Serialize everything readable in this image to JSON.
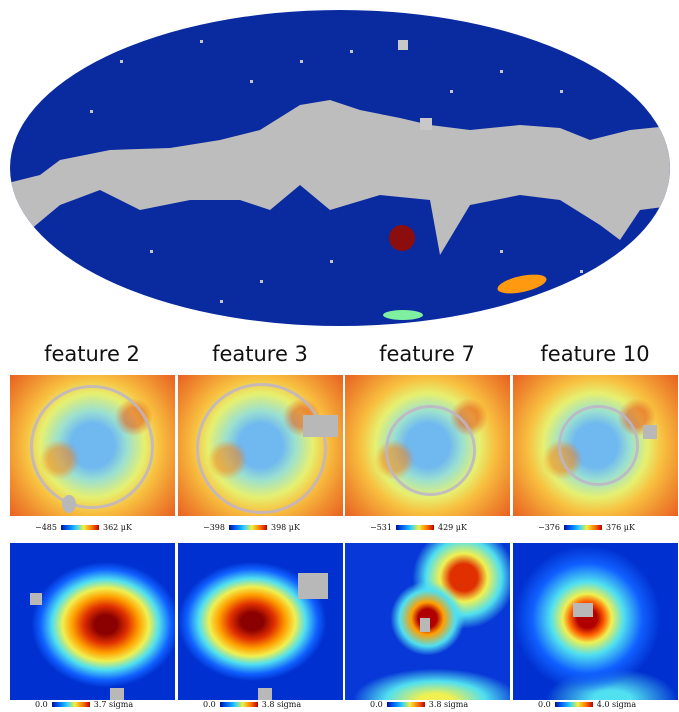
{
  "figure": {
    "sky_map": {
      "background_color": "#0a2aa0",
      "mask_color": "#bdbdbd",
      "feature_colors": [
        "#8b0d0d",
        "#ff9a10",
        "#7ff0a0"
      ]
    },
    "panels": [
      {
        "title": "feature 2",
        "map_min": "−485",
        "map_max": "362 μK",
        "sig_min": "0.0",
        "sig_max": "3.7 sigma"
      },
      {
        "title": "feature 3",
        "map_min": "−398",
        "map_max": "398 μK",
        "sig_min": "0.0",
        "sig_max": "3.8 sigma"
      },
      {
        "title": "feature 7",
        "map_min": "−531",
        "map_max": "429 μK",
        "sig_min": "0.0",
        "sig_max": "3.8 sigma"
      },
      {
        "title": "feature 10",
        "map_min": "−376",
        "map_max": "376 μK",
        "sig_min": "0.0",
        "sig_max": "4.0 sigma"
      }
    ]
  }
}
